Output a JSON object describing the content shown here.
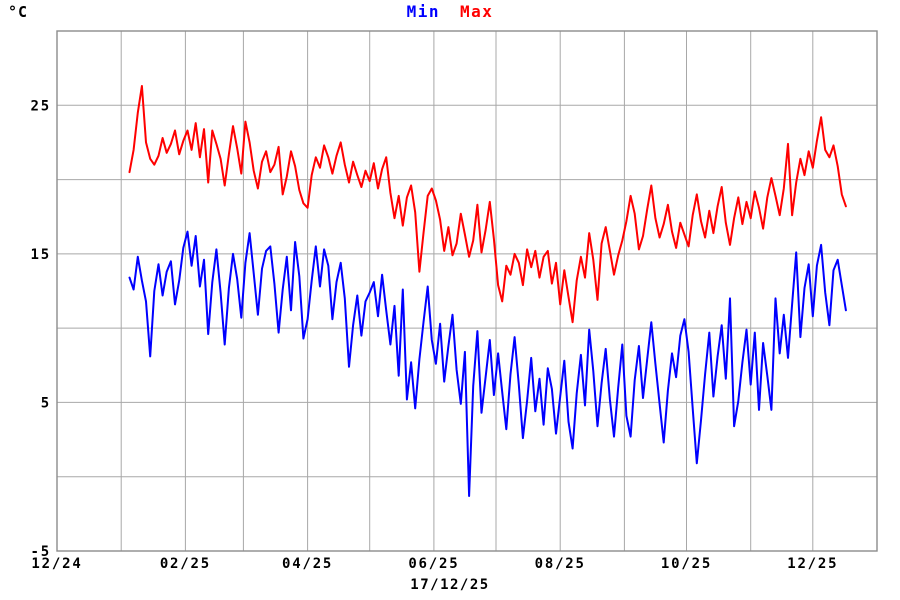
{
  "page": {
    "background_color": "#ffffff"
  },
  "header": {
    "unit_label": "°C"
  },
  "footer": {
    "date_label": "17/12/25"
  },
  "chart_data": {
    "type": "line",
    "title": "Min Max",
    "ylabel": "°C",
    "xlabel": "",
    "ylim": [
      -5,
      30
    ],
    "y_gridline_step": 5,
    "y_tick_labels": [
      {
        "value": 25,
        "label": "25"
      },
      {
        "value": 15,
        "label": "15"
      },
      {
        "value": 5,
        "label": "5"
      },
      {
        "value": -5,
        "label": "-5"
      }
    ],
    "x_axis": {
      "description": "days since 2024-12-01, monthly gridlines, labels every 2 months",
      "span_days": 396,
      "month_grid_days": [
        0,
        31,
        62,
        90,
        121,
        151,
        182,
        212,
        243,
        274,
        304,
        335,
        365,
        396
      ],
      "tick_labels": [
        {
          "day": 0,
          "label": "12/24"
        },
        {
          "day": 62,
          "label": "02/25"
        },
        {
          "day": 121,
          "label": "04/25"
        },
        {
          "day": 182,
          "label": "06/25"
        },
        {
          "day": 243,
          "label": "08/25"
        },
        {
          "day": 304,
          "label": "10/25"
        },
        {
          "day": 365,
          "label": "12/25"
        }
      ]
    },
    "grid": true,
    "grid_color": "#a8a8a8",
    "frame_color": "#8c8c8c",
    "legend_position": "top-center",
    "annotation": "17/12/25",
    "series_start_day": 35,
    "series_start_date": "2025-01-05",
    "series_end_date": "2025-12-17",
    "sample_interval_days": 2,
    "series": [
      {
        "name": "Min",
        "color": "#0000ff",
        "values": [
          13.4,
          12.6,
          14.8,
          13.2,
          11.8,
          8.1,
          12.5,
          14.3,
          12.2,
          13.8,
          14.5,
          11.6,
          13.2,
          15.4,
          16.5,
          14.2,
          16.2,
          12.8,
          14.6,
          9.6,
          13.1,
          15.3,
          12.4,
          8.9,
          12.7,
          15.0,
          13.3,
          10.7,
          14.4,
          16.4,
          13.7,
          10.9,
          14.0,
          15.2,
          15.5,
          13.0,
          9.7,
          12.6,
          14.8,
          11.2,
          15.8,
          13.5,
          9.3,
          10.6,
          13.2,
          15.5,
          12.8,
          15.3,
          14.2,
          10.6,
          13.1,
          14.4,
          12.0,
          7.4,
          10.2,
          12.2,
          9.5,
          11.8,
          12.4,
          13.1,
          10.8,
          13.6,
          11.2,
          8.9,
          11.5,
          6.8,
          12.6,
          5.2,
          7.7,
          4.6,
          7.9,
          10.4,
          12.8,
          9.2,
          7.6,
          10.3,
          6.4,
          8.8,
          10.9,
          7.2,
          4.9,
          8.4,
          -1.3,
          6.1,
          9.8,
          4.3,
          6.7,
          9.2,
          5.5,
          8.3,
          5.7,
          3.2,
          6.9,
          9.4,
          6.2,
          2.6,
          5.1,
          8.0,
          4.4,
          6.6,
          3.5,
          7.3,
          5.9,
          2.9,
          5.4,
          7.8,
          3.7,
          1.9,
          5.6,
          8.2,
          4.8,
          9.9,
          7.1,
          3.4,
          6.3,
          8.6,
          5.2,
          2.7,
          6.0,
          8.9,
          4.1,
          2.7,
          6.5,
          8.8,
          5.3,
          7.9,
          10.4,
          7.6,
          4.9,
          2.3,
          5.8,
          8.3,
          6.7,
          9.5,
          10.6,
          8.4,
          4.6,
          0.9,
          3.8,
          6.9,
          9.7,
          5.4,
          8.1,
          10.2,
          6.6,
          12.0,
          3.4,
          5.1,
          7.7,
          9.9,
          6.2,
          9.7,
          4.5,
          9.0,
          6.8,
          4.5,
          12.0,
          8.3,
          10.9,
          8.0,
          11.6,
          15.1,
          9.4,
          12.7,
          14.3,
          10.8,
          14.2,
          15.6,
          12.4,
          10.2,
          13.9,
          14.6,
          12.9,
          11.2
        ]
      },
      {
        "name": "Max",
        "color": "#ff0000",
        "values": [
          20.5,
          22.0,
          24.5,
          26.3,
          22.5,
          21.4,
          21.0,
          21.6,
          22.8,
          21.8,
          22.4,
          23.3,
          21.7,
          22.6,
          23.3,
          22.0,
          23.8,
          21.5,
          23.4,
          19.8,
          23.3,
          22.4,
          21.4,
          19.6,
          21.7,
          23.6,
          22.1,
          20.4,
          23.9,
          22.5,
          20.6,
          19.4,
          21.2,
          21.9,
          20.5,
          21.0,
          22.2,
          19.0,
          20.2,
          21.9,
          20.9,
          19.3,
          18.4,
          18.1,
          20.3,
          21.5,
          20.8,
          22.3,
          21.5,
          20.4,
          21.6,
          22.5,
          21.0,
          19.8,
          21.2,
          20.3,
          19.5,
          20.6,
          19.9,
          21.1,
          19.4,
          20.7,
          21.5,
          19.1,
          17.4,
          18.9,
          16.9,
          18.8,
          19.6,
          17.8,
          13.8,
          16.4,
          18.9,
          19.4,
          18.6,
          17.3,
          15.2,
          16.8,
          14.9,
          15.7,
          17.7,
          16.3,
          14.8,
          15.9,
          18.3,
          15.1,
          16.6,
          18.5,
          16.0,
          12.9,
          11.8,
          14.2,
          13.6,
          15.0,
          14.4,
          12.9,
          15.3,
          14.1,
          15.2,
          13.4,
          14.8,
          15.2,
          13.0,
          14.4,
          11.6,
          13.9,
          12.1,
          10.4,
          13.2,
          14.8,
          13.4,
          16.4,
          14.6,
          11.9,
          15.7,
          16.8,
          15.2,
          13.6,
          14.9,
          15.9,
          17.2,
          18.9,
          17.7,
          15.3,
          16.2,
          18.0,
          19.6,
          17.4,
          16.1,
          17.0,
          18.3,
          16.5,
          15.4,
          17.1,
          16.3,
          15.5,
          17.6,
          19.0,
          17.2,
          16.1,
          17.9,
          16.4,
          18.2,
          19.5,
          17.1,
          15.6,
          17.4,
          18.8,
          17.0,
          18.5,
          17.4,
          19.2,
          18.1,
          16.7,
          18.8,
          20.1,
          18.9,
          17.6,
          19.4,
          22.4,
          17.6,
          19.8,
          21.4,
          20.3,
          21.9,
          20.8,
          22.6,
          24.2,
          22.0,
          21.5,
          22.3,
          20.9,
          19.0,
          18.2
        ]
      }
    ]
  }
}
